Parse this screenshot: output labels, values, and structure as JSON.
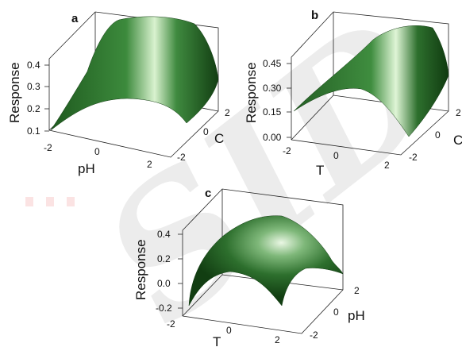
{
  "watermark": "SID",
  "colors": {
    "surface_light": "#d9f2cf",
    "surface_mid": "#2f7a2f",
    "surface_dark": "#123e12",
    "axes": "#222222",
    "watermark": "#ececec",
    "watermark_dots": "#fbe3e3"
  },
  "chart_data": [
    {
      "type": "surface3d",
      "panel_label": "a",
      "zlabel": "Response",
      "xlabel": "pH",
      "ylabel": "C",
      "x_ticks": [
        "-2",
        "0",
        "2"
      ],
      "y_ticks": [
        "-2",
        "0",
        "2"
      ],
      "z_ticks": [
        "0.1",
        "0.2",
        "0.3",
        "0.4"
      ],
      "xlim": [
        -2,
        2
      ],
      "ylim": [
        -2,
        2
      ],
      "zlim": [
        0.1,
        0.45
      ],
      "surface": {
        "x": [
          -2,
          -1,
          0,
          1,
          2
        ],
        "y": [
          -2,
          -1,
          0,
          1,
          2
        ],
        "z": [
          [
            0.1,
            0.15,
            0.2,
            0.25,
            0.3
          ],
          [
            0.2,
            0.26,
            0.32,
            0.37,
            0.4
          ],
          [
            0.25,
            0.31,
            0.36,
            0.4,
            0.44
          ],
          [
            0.22,
            0.28,
            0.34,
            0.38,
            0.41
          ],
          [
            0.12,
            0.18,
            0.24,
            0.29,
            0.33
          ]
        ]
      }
    },
    {
      "type": "surface3d",
      "panel_label": "b",
      "zlabel": "Response",
      "xlabel": "T",
      "ylabel": "C",
      "x_ticks": [
        "-2",
        "0",
        "2"
      ],
      "y_ticks": [
        "-2",
        "0",
        "2"
      ],
      "z_ticks": [
        "0.00",
        "0.15",
        "0.30",
        "0.45"
      ],
      "xlim": [
        -2,
        2
      ],
      "ylim": [
        -2,
        2
      ],
      "zlim": [
        0,
        0.45
      ],
      "surface": {
        "x": [
          -2,
          -1,
          0,
          1,
          2
        ],
        "y": [
          -2,
          -1,
          0,
          1,
          2
        ],
        "z": [
          [
            0.05,
            0.1,
            0.15,
            0.2,
            0.25
          ],
          [
            0.15,
            0.22,
            0.28,
            0.33,
            0.37
          ],
          [
            0.2,
            0.27,
            0.33,
            0.39,
            0.44
          ],
          [
            0.17,
            0.24,
            0.3,
            0.35,
            0.39
          ],
          [
            0.08,
            0.14,
            0.2,
            0.25,
            0.3
          ]
        ]
      }
    },
    {
      "type": "surface3d",
      "panel_label": "c",
      "zlabel": "Response",
      "xlabel": "T",
      "ylabel": "pH",
      "x_ticks": [
        "-2",
        "0",
        "2"
      ],
      "y_ticks": [
        "-2",
        "0",
        "2"
      ],
      "z_ticks": [
        "-0.2",
        "0.0",
        "0.2",
        "0.4"
      ],
      "xlim": [
        -2,
        2
      ],
      "ylim": [
        -2,
        2
      ],
      "zlim": [
        -0.2,
        0.45
      ],
      "surface": {
        "x": [
          -2,
          -1,
          0,
          1,
          2
        ],
        "y": [
          -2,
          -1,
          0,
          1,
          2
        ],
        "z": [
          [
            -0.2,
            -0.02,
            0.08,
            0.02,
            -0.12
          ],
          [
            -0.02,
            0.18,
            0.28,
            0.22,
            0.06
          ],
          [
            0.05,
            0.28,
            0.4,
            0.33,
            0.14
          ],
          [
            -0.02,
            0.2,
            0.32,
            0.25,
            0.08
          ],
          [
            -0.18,
            0.02,
            0.12,
            0.06,
            -0.08
          ]
        ]
      }
    }
  ]
}
